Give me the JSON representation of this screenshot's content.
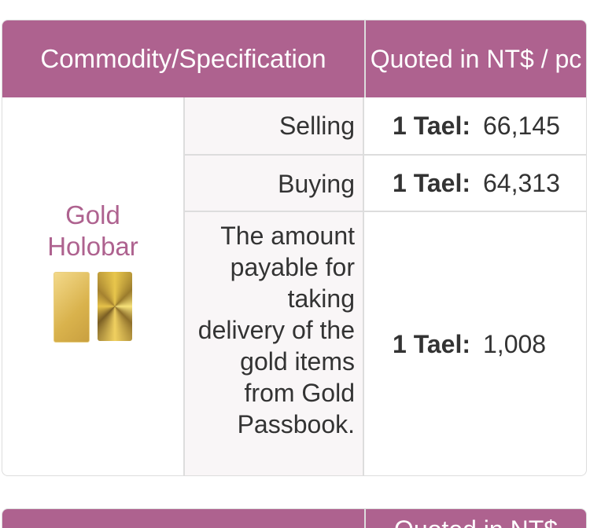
{
  "table": {
    "header": {
      "commodity": "Commodity/Specification",
      "quote": "Quoted in NT$ / pc"
    },
    "commodity_name": "Gold Holobar",
    "rows": [
      {
        "spec": "Selling",
        "unit": "1 Tael:",
        "value": "66,145"
      },
      {
        "spec": "Buying",
        "unit": "1 Tael:",
        "value": "64,313"
      },
      {
        "spec": "The amount payable for taking delivery of the gold items from Gold Passbook.",
        "unit": "1 Tael:",
        "value": "1,008"
      }
    ]
  },
  "table2": {
    "header": {
      "quote": "Quoted in NT$"
    }
  },
  "colors": {
    "header_bg": "#ae628f",
    "accent_text": "#ae628f"
  }
}
